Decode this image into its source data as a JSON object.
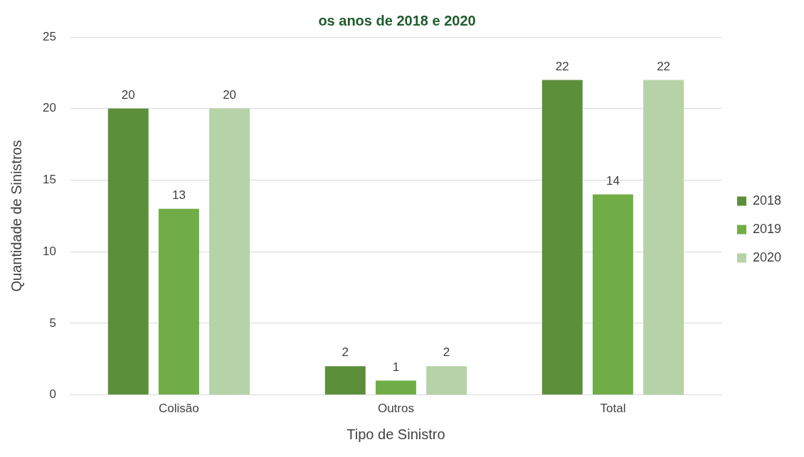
{
  "chart_data": {
    "type": "bar",
    "title": "os anos de 2018 e 2020",
    "xlabel": "Tipo de Sinistro",
    "ylabel": "Quantidade de Sinistros",
    "categories": [
      "Colisão",
      "Outros",
      "Total"
    ],
    "series": [
      {
        "name": "2018",
        "color": "#5b8f3a",
        "values": [
          20,
          2,
          22
        ]
      },
      {
        "name": "2019",
        "color": "#70ad47",
        "values": [
          13,
          1,
          14
        ]
      },
      {
        "name": "2020",
        "color": "#b5d3a7",
        "values": [
          20,
          2,
          22
        ]
      }
    ],
    "ylim": [
      0,
      25
    ],
    "yticks": [
      0,
      5,
      10,
      15,
      20,
      25
    ],
    "grid": "y",
    "legend": "right",
    "data_labels": true
  }
}
